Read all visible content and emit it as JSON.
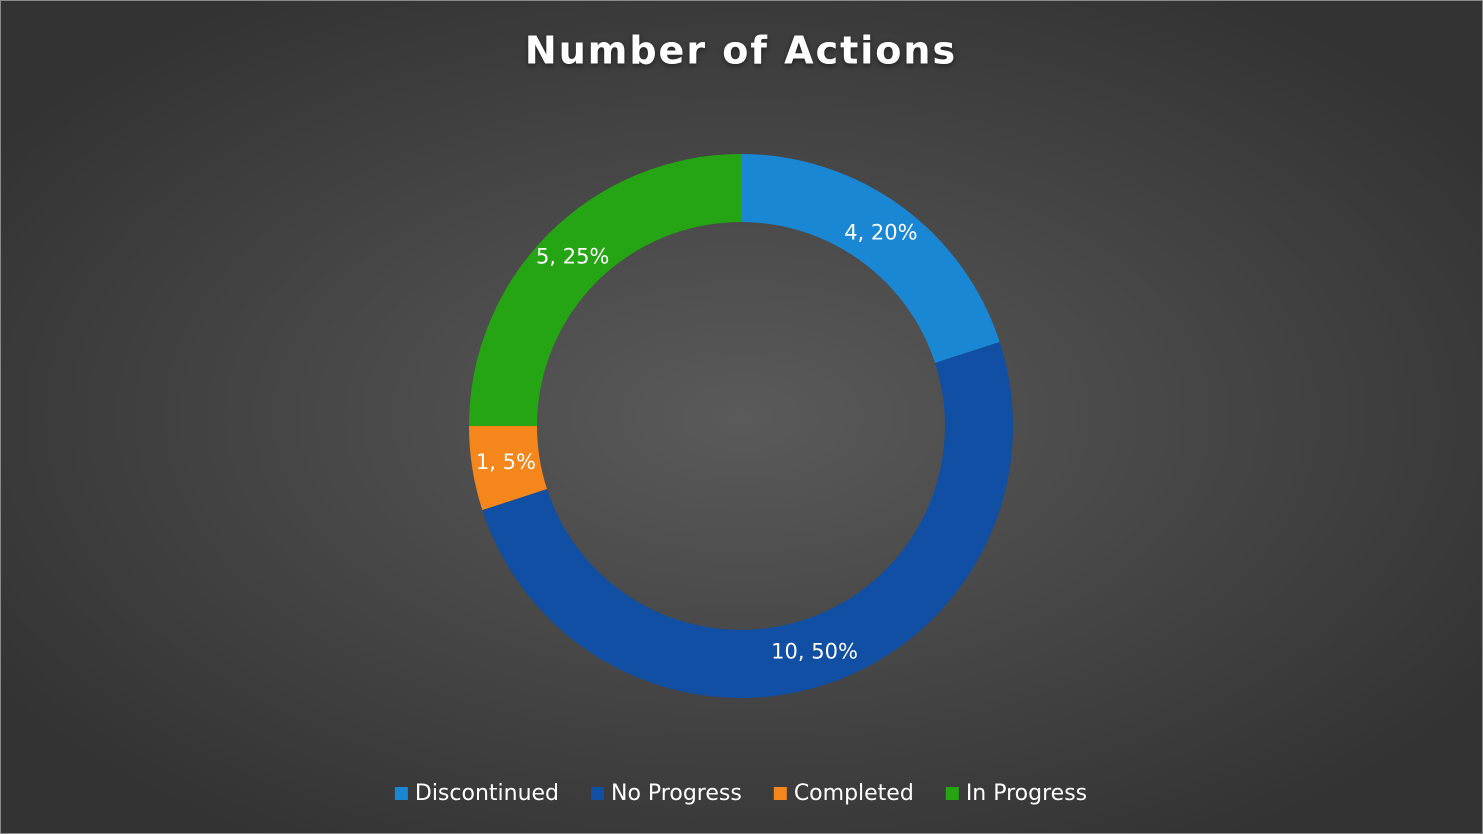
{
  "chart_data": {
    "type": "pie",
    "title": "Number of Actions",
    "categories": [
      "Discontinued",
      "No Progress",
      "Completed",
      "In Progress"
    ],
    "values": [
      4,
      10,
      1,
      5
    ],
    "value_labels": [
      "4, 20%",
      "10, 50%",
      "1, 5%",
      "5, 25%"
    ],
    "colors": [
      "#1a87d4",
      "#104fa3",
      "#f5861c",
      "#26a514"
    ],
    "legend": "bottom"
  }
}
